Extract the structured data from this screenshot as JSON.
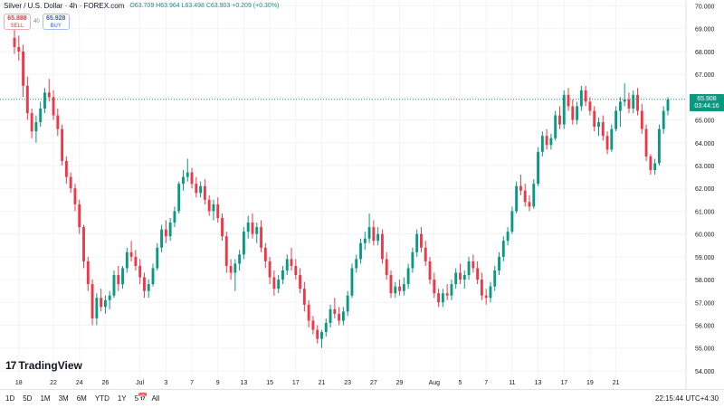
{
  "header": {
    "title": "Silver / U.S. Dollar · 4h · FOREX.com",
    "ohlc": "O63.709 H63.964 L63.498 C63.903 +0.209 (+0.30%)"
  },
  "trade": {
    "sell_price": "65.888",
    "sell_label": "SELL",
    "spread": "40",
    "buy_price": "65.928",
    "buy_label": "BUY"
  },
  "price_tag": {
    "price": "65.908",
    "countdown": "03:44:16"
  },
  "logo": {
    "mark": "17",
    "text": "TradingView"
  },
  "toolbar": {
    "ranges": [
      "1D",
      "5D",
      "1M",
      "3M",
      "6M",
      "YTD",
      "1Y",
      "5Y",
      "All"
    ],
    "clock": "22:15:44 UTC+4:30"
  },
  "colors": {
    "up": "#089981",
    "down": "#f23645",
    "grid": "#f0f3fa",
    "price_line": "#089981"
  },
  "icons": {
    "calendar": "calendar-range-icon"
  },
  "chart_data": {
    "type": "candlestick",
    "symbol": "Silver / U.S. Dollar",
    "interval": "4h",
    "ylim": [
      53.6,
      70.1
    ],
    "y_ticks": [
      "54.000",
      "55.000",
      "56.000",
      "57.000",
      "58.000",
      "59.000",
      "60.000",
      "61.000",
      "62.000",
      "63.000",
      "64.000",
      "65.000",
      "66.000",
      "67.000",
      "68.000",
      "69.000",
      "70.000"
    ],
    "x_ticks": [
      {
        "i": 1,
        "label": "18"
      },
      {
        "i": 9,
        "label": "22"
      },
      {
        "i": 15,
        "label": "24"
      },
      {
        "i": 21,
        "label": "26"
      },
      {
        "i": 29,
        "label": "Jul"
      },
      {
        "i": 35,
        "label": "3"
      },
      {
        "i": 41,
        "label": "7"
      },
      {
        "i": 47,
        "label": "9"
      },
      {
        "i": 53,
        "label": "13"
      },
      {
        "i": 59,
        "label": "15"
      },
      {
        "i": 65,
        "label": "17"
      },
      {
        "i": 71,
        "label": "21"
      },
      {
        "i": 77,
        "label": "23"
      },
      {
        "i": 83,
        "label": "27"
      },
      {
        "i": 89,
        "label": "29"
      },
      {
        "i": 97,
        "label": "Aug"
      },
      {
        "i": 103,
        "label": "5"
      },
      {
        "i": 109,
        "label": "7"
      },
      {
        "i": 115,
        "label": "11"
      },
      {
        "i": 121,
        "label": "13"
      },
      {
        "i": 127,
        "label": "17"
      },
      {
        "i": 133,
        "label": "19"
      },
      {
        "i": 139,
        "label": "21"
      }
    ],
    "last_price": 65.908,
    "ohlc": [
      [
        68.6,
        69.4,
        67.9,
        68.2
      ],
      [
        68.2,
        68.7,
        67.6,
        68.0
      ],
      [
        68.0,
        68.3,
        66.0,
        66.5
      ],
      [
        66.5,
        66.9,
        65.0,
        65.3
      ],
      [
        65.3,
        65.5,
        64.2,
        64.5
      ],
      [
        64.5,
        65.2,
        64.0,
        64.9
      ],
      [
        64.9,
        65.8,
        64.7,
        65.5
      ],
      [
        65.5,
        66.4,
        65.3,
        66.2
      ],
      [
        66.2,
        66.8,
        65.8,
        66.0
      ],
      [
        66.0,
        66.3,
        65.0,
        65.2
      ],
      [
        65.2,
        65.5,
        64.3,
        64.6
      ],
      [
        64.6,
        64.8,
        63.0,
        63.2
      ],
      [
        63.2,
        63.4,
        62.2,
        62.5
      ],
      [
        62.5,
        62.7,
        61.8,
        62.0
      ],
      [
        62.0,
        62.2,
        61.0,
        61.3
      ],
      [
        61.3,
        61.5,
        60.0,
        60.3
      ],
      [
        60.3,
        60.4,
        58.5,
        58.8
      ],
      [
        58.8,
        59.0,
        57.5,
        57.8
      ],
      [
        57.8,
        58.0,
        56.0,
        56.3
      ],
      [
        56.3,
        57.4,
        56.0,
        57.2
      ],
      [
        57.2,
        57.6,
        56.6,
        56.8
      ],
      [
        56.8,
        57.3,
        56.5,
        57.1
      ],
      [
        57.1,
        57.5,
        56.7,
        57.3
      ],
      [
        57.3,
        58.4,
        57.2,
        58.2
      ],
      [
        58.2,
        58.6,
        57.5,
        57.8
      ],
      [
        57.8,
        58.6,
        57.6,
        58.5
      ],
      [
        58.5,
        59.4,
        58.3,
        59.2
      ],
      [
        59.2,
        59.7,
        58.8,
        59.0
      ],
      [
        59.0,
        59.3,
        58.4,
        58.6
      ],
      [
        58.6,
        58.9,
        57.8,
        58.1
      ],
      [
        58.1,
        58.3,
        57.2,
        57.5
      ],
      [
        57.5,
        58.0,
        57.2,
        57.8
      ],
      [
        57.8,
        58.7,
        57.7,
        58.5
      ],
      [
        58.5,
        59.6,
        58.4,
        59.4
      ],
      [
        59.4,
        60.4,
        59.2,
        60.2
      ],
      [
        60.2,
        60.6,
        59.6,
        59.9
      ],
      [
        59.9,
        60.7,
        59.7,
        60.5
      ],
      [
        60.5,
        61.2,
        60.3,
        61.0
      ],
      [
        61.0,
        62.3,
        60.9,
        62.2
      ],
      [
        62.2,
        62.8,
        61.9,
        62.5
      ],
      [
        62.5,
        63.3,
        62.3,
        62.7
      ],
      [
        62.7,
        62.9,
        62.0,
        62.2
      ],
      [
        62.2,
        62.5,
        61.6,
        61.8
      ],
      [
        61.8,
        62.3,
        61.6,
        62.1
      ],
      [
        62.1,
        62.4,
        61.3,
        61.5
      ],
      [
        61.5,
        61.7,
        60.8,
        61.0
      ],
      [
        61.0,
        61.5,
        60.6,
        61.3
      ],
      [
        61.3,
        61.6,
        60.5,
        60.7
      ],
      [
        60.7,
        60.9,
        59.7,
        59.9
      ],
      [
        59.9,
        60.1,
        58.3,
        58.6
      ],
      [
        58.6,
        58.9,
        58.0,
        58.3
      ],
      [
        58.3,
        58.9,
        57.5,
        58.7
      ],
      [
        58.7,
        59.3,
        58.4,
        59.1
      ],
      [
        59.1,
        60.3,
        58.9,
        60.1
      ],
      [
        60.1,
        60.8,
        59.8,
        60.5
      ],
      [
        60.5,
        60.9,
        59.8,
        60.0
      ],
      [
        60.0,
        60.5,
        59.6,
        60.3
      ],
      [
        60.3,
        60.6,
        59.2,
        59.4
      ],
      [
        59.4,
        59.6,
        58.5,
        58.8
      ],
      [
        58.8,
        59.0,
        57.8,
        58.1
      ],
      [
        58.1,
        58.4,
        57.3,
        57.6
      ],
      [
        57.6,
        58.2,
        57.4,
        58.0
      ],
      [
        58.0,
        58.6,
        57.8,
        58.4
      ],
      [
        58.4,
        59.1,
        58.2,
        58.9
      ],
      [
        58.9,
        59.4,
        58.4,
        58.6
      ],
      [
        58.6,
        58.9,
        58.0,
        58.2
      ],
      [
        58.2,
        58.5,
        57.4,
        57.6
      ],
      [
        57.6,
        57.9,
        56.6,
        56.9
      ],
      [
        56.9,
        57.1,
        55.9,
        56.2
      ],
      [
        56.2,
        56.4,
        55.6,
        55.8
      ],
      [
        55.8,
        56.0,
        55.2,
        55.4
      ],
      [
        55.4,
        55.8,
        55.0,
        55.7
      ],
      [
        55.7,
        56.3,
        55.5,
        56.1
      ],
      [
        56.1,
        56.9,
        55.9,
        56.7
      ],
      [
        56.7,
        57.2,
        56.3,
        56.5
      ],
      [
        56.5,
        56.8,
        56.0,
        56.2
      ],
      [
        56.2,
        56.8,
        56.0,
        56.6
      ],
      [
        56.6,
        57.5,
        56.4,
        57.3
      ],
      [
        57.3,
        58.7,
        57.2,
        58.5
      ],
      [
        58.5,
        59.1,
        58.3,
        58.9
      ],
      [
        58.9,
        59.8,
        58.7,
        59.6
      ],
      [
        59.6,
        60.1,
        59.3,
        59.8
      ],
      [
        59.8,
        60.9,
        59.6,
        60.3
      ],
      [
        60.3,
        60.6,
        59.5,
        59.7
      ],
      [
        59.7,
        60.3,
        59.5,
        60.0
      ],
      [
        60.0,
        60.2,
        58.7,
        58.9
      ],
      [
        58.9,
        59.2,
        58.0,
        58.2
      ],
      [
        58.2,
        58.4,
        57.2,
        57.4
      ],
      [
        57.4,
        57.9,
        57.2,
        57.7
      ],
      [
        57.7,
        58.0,
        57.3,
        57.5
      ],
      [
        57.5,
        58.1,
        57.3,
        57.8
      ],
      [
        57.8,
        58.7,
        57.6,
        58.5
      ],
      [
        58.5,
        59.4,
        58.3,
        59.2
      ],
      [
        59.2,
        60.2,
        59.0,
        60.0
      ],
      [
        60.0,
        60.3,
        59.2,
        59.4
      ],
      [
        59.4,
        59.7,
        58.6,
        58.8
      ],
      [
        58.8,
        59.0,
        57.8,
        58.0
      ],
      [
        58.0,
        58.3,
        57.2,
        57.4
      ],
      [
        57.4,
        57.6,
        56.8,
        57.0
      ],
      [
        57.0,
        57.6,
        56.8,
        57.4
      ],
      [
        57.4,
        57.8,
        57.1,
        57.3
      ],
      [
        57.3,
        58.0,
        57.1,
        57.8
      ],
      [
        57.8,
        58.5,
        57.6,
        58.3
      ],
      [
        58.3,
        58.7,
        57.8,
        58.0
      ],
      [
        58.0,
        58.4,
        57.6,
        58.2
      ],
      [
        58.2,
        59.0,
        58.0,
        58.8
      ],
      [
        58.8,
        59.1,
        58.3,
        58.5
      ],
      [
        58.5,
        58.8,
        57.8,
        58.0
      ],
      [
        58.0,
        58.3,
        57.1,
        57.3
      ],
      [
        57.3,
        57.6,
        56.9,
        57.2
      ],
      [
        57.2,
        57.9,
        57.0,
        57.7
      ],
      [
        57.7,
        58.6,
        57.5,
        58.4
      ],
      [
        58.4,
        59.2,
        58.2,
        59.0
      ],
      [
        59.0,
        59.9,
        58.8,
        59.7
      ],
      [
        59.7,
        60.3,
        59.5,
        60.1
      ],
      [
        60.1,
        61.2,
        60.0,
        61.0
      ],
      [
        61.0,
        62.3,
        60.9,
        62.1
      ],
      [
        62.1,
        62.6,
        61.7,
        61.9
      ],
      [
        61.9,
        62.2,
        61.2,
        61.4
      ],
      [
        61.4,
        61.7,
        61.0,
        61.2
      ],
      [
        61.2,
        62.4,
        61.1,
        62.2
      ],
      [
        62.2,
        63.8,
        62.1,
        63.6
      ],
      [
        63.6,
        64.5,
        63.4,
        64.3
      ],
      [
        64.3,
        64.6,
        63.7,
        63.9
      ],
      [
        63.9,
        64.4,
        63.7,
        64.2
      ],
      [
        64.2,
        65.4,
        64.1,
        65.2
      ],
      [
        65.2,
        65.6,
        64.6,
        64.8
      ],
      [
        64.8,
        66.3,
        64.6,
        66.1
      ],
      [
        66.1,
        66.4,
        65.4,
        65.6
      ],
      [
        65.6,
        65.9,
        64.8,
        65.0
      ],
      [
        65.0,
        65.8,
        64.8,
        65.6
      ],
      [
        65.6,
        66.5,
        65.4,
        66.3
      ],
      [
        66.3,
        66.5,
        65.6,
        65.8
      ],
      [
        65.8,
        66.0,
        65.2,
        65.4
      ],
      [
        65.4,
        65.6,
        64.5,
        64.7
      ],
      [
        64.7,
        65.1,
        64.3,
        64.9
      ],
      [
        64.9,
        65.2,
        64.1,
        64.3
      ],
      [
        64.3,
        64.5,
        63.5,
        63.7
      ],
      [
        63.7,
        64.8,
        63.6,
        64.6
      ],
      [
        64.6,
        65.6,
        64.5,
        65.4
      ],
      [
        65.4,
        66.0,
        64.7,
        65.8
      ],
      [
        65.8,
        66.6,
        65.6,
        65.9
      ],
      [
        65.9,
        66.2,
        65.3,
        65.5
      ],
      [
        65.5,
        66.3,
        65.3,
        66.1
      ],
      [
        66.1,
        66.4,
        65.2,
        65.4
      ],
      [
        65.4,
        65.7,
        64.4,
        64.6
      ],
      [
        64.6,
        64.8,
        63.2,
        63.4
      ],
      [
        63.4,
        63.5,
        62.6,
        62.8
      ],
      [
        62.8,
        63.3,
        62.6,
        63.1
      ],
      [
        63.1,
        64.8,
        63.0,
        64.6
      ],
      [
        64.6,
        65.6,
        64.4,
        65.4
      ],
      [
        65.4,
        66.0,
        65.2,
        65.9
      ]
    ]
  }
}
